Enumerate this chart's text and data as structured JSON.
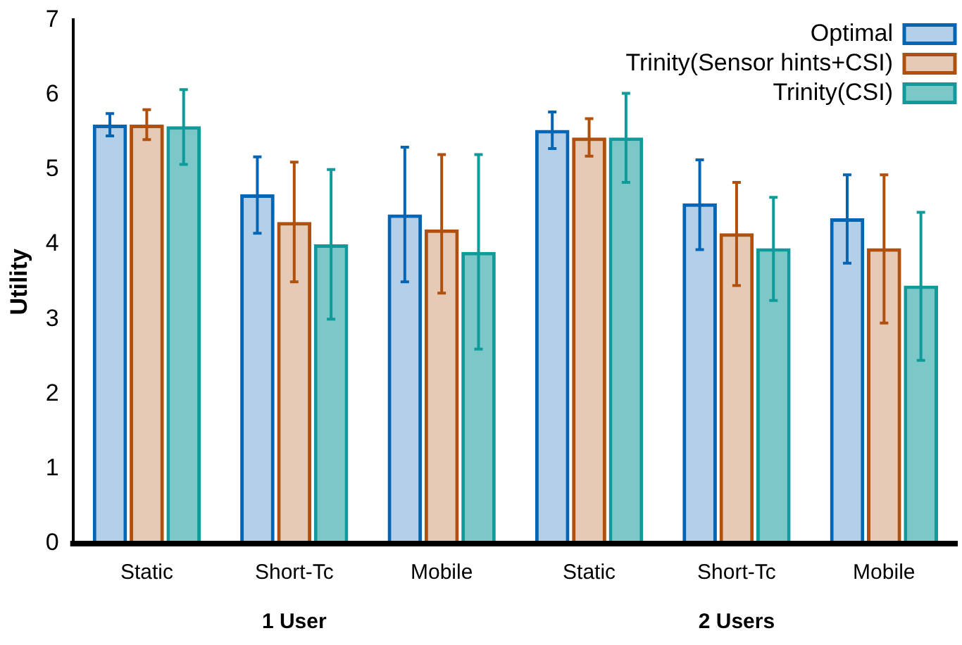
{
  "chart_data": {
    "type": "bar",
    "ylabel": "Utility",
    "categories": [
      "Static",
      "Short-Tc",
      "Mobile",
      "Static",
      "Short-Tc",
      "Mobile"
    ],
    "annotations": [
      "1 User",
      "2 Users"
    ],
    "ylim": [
      0,
      7
    ],
    "yticks": [
      0,
      1,
      2,
      3,
      4,
      5,
      6,
      7
    ],
    "grid": false,
    "legend": "top right",
    "series": [
      {
        "name": "Optimal",
        "color": "#0565b5",
        "values": [
          5.6,
          4.67,
          4.4,
          5.53,
          4.55,
          4.35
        ],
        "errors": [
          [
            5.45,
            5.75
          ],
          [
            4.15,
            5.17
          ],
          [
            3.5,
            5.3
          ],
          [
            5.28,
            5.77
          ],
          [
            3.93,
            5.13
          ],
          [
            3.75,
            4.93
          ]
        ]
      },
      {
        "name": "Trinity(Sensor hints+CSI)",
        "color": "#b0500e",
        "values": [
          5.6,
          4.3,
          4.2,
          5.43,
          4.15,
          3.95
        ],
        "errors": [
          [
            5.4,
            5.8
          ],
          [
            3.5,
            5.1
          ],
          [
            3.35,
            5.2
          ],
          [
            5.18,
            5.68
          ],
          [
            3.45,
            4.83
          ],
          [
            2.95,
            4.93
          ]
        ]
      },
      {
        "name": "Trinity(CSI)",
        "color": "#119a9a",
        "values": [
          5.58,
          4.0,
          3.9,
          5.43,
          3.95,
          3.45
        ],
        "errors": [
          [
            5.07,
            6.07
          ],
          [
            3.0,
            5.0
          ],
          [
            2.6,
            5.2
          ],
          [
            4.83,
            6.02
          ],
          [
            3.25,
            4.63
          ],
          [
            2.45,
            4.43
          ]
        ]
      }
    ]
  }
}
